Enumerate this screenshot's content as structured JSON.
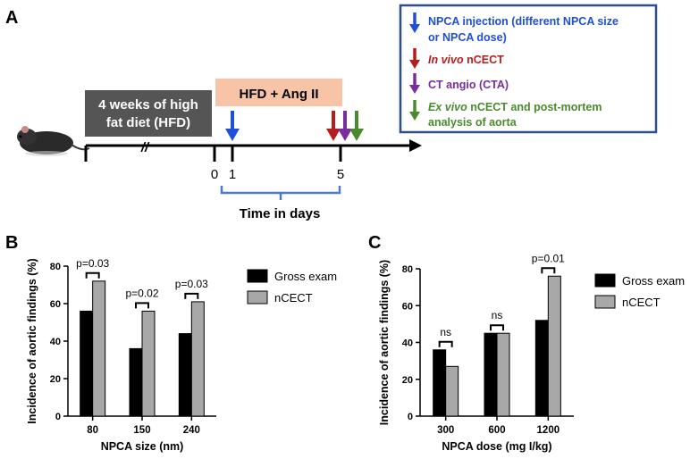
{
  "panels": {
    "a": "A",
    "b": "B",
    "c": "C"
  },
  "timeline": {
    "hfd_box_line1": "4 weeks of high",
    "hfd_box_line2": "fat diet (HFD)",
    "angii_box": "HFD + Ang II",
    "break_mark": "//",
    "ticks": [
      "0",
      "1",
      "5"
    ],
    "xlabel": "Time in days",
    "legend": [
      {
        "color": "#1f4fd8",
        "line1": "NPCA injection (different NPCA size",
        "line2": "or NPCA dose)",
        "prefix_italic": ""
      },
      {
        "color": "#b81d1d",
        "line1": " nCECT",
        "line2": "",
        "prefix_italic": "In vivo"
      },
      {
        "color": "#7a2d9c",
        "line1": "CT angio (CTA)",
        "line2": "",
        "prefix_italic": ""
      },
      {
        "color": "#4a8a2c",
        "line1": " nCECT and post-mortem",
        "line2": "analysis of aorta",
        "prefix_italic": "Ex vivo"
      }
    ],
    "colors": {
      "hfd_box": "#555555",
      "angii_box": "#f7c4a8",
      "legend_border": "#2a4f8a",
      "bracket": "#4a7bc8"
    }
  },
  "chart_data": [
    {
      "type": "bar",
      "title": "",
      "xlabel": "NPCA size (nm)",
      "ylabel": "Incidence of aortic findings (%)",
      "categories": [
        "80",
        "150",
        "240"
      ],
      "series": [
        {
          "name": "Gross exam",
          "values": [
            56,
            36,
            44
          ],
          "color": "#000000"
        },
        {
          "name": "nCECT",
          "values": [
            72,
            56,
            61
          ],
          "color": "#a8a8a8"
        }
      ],
      "annotations": [
        "p=0.03",
        "p=0.02",
        "p=0.03"
      ],
      "ylim": [
        0,
        80
      ],
      "yticks": [
        "0",
        "20",
        "40",
        "60",
        "80"
      ],
      "legend": "right"
    },
    {
      "type": "bar",
      "title": "",
      "xlabel": "NPCA dose (mg I/kg)",
      "ylabel": "Incidence of aortic findings (%)",
      "categories": [
        "300",
        "600",
        "1200"
      ],
      "series": [
        {
          "name": "Gross exam",
          "values": [
            36,
            45,
            52
          ],
          "color": "#000000"
        },
        {
          "name": "nCECT",
          "values": [
            27,
            45,
            76
          ],
          "color": "#a8a8a8"
        }
      ],
      "annotations": [
        "ns",
        "ns",
        "p=0.01"
      ],
      "ylim": [
        0,
        80
      ],
      "yticks": [
        "0",
        "20",
        "40",
        "60",
        "80"
      ],
      "legend": "right"
    }
  ]
}
